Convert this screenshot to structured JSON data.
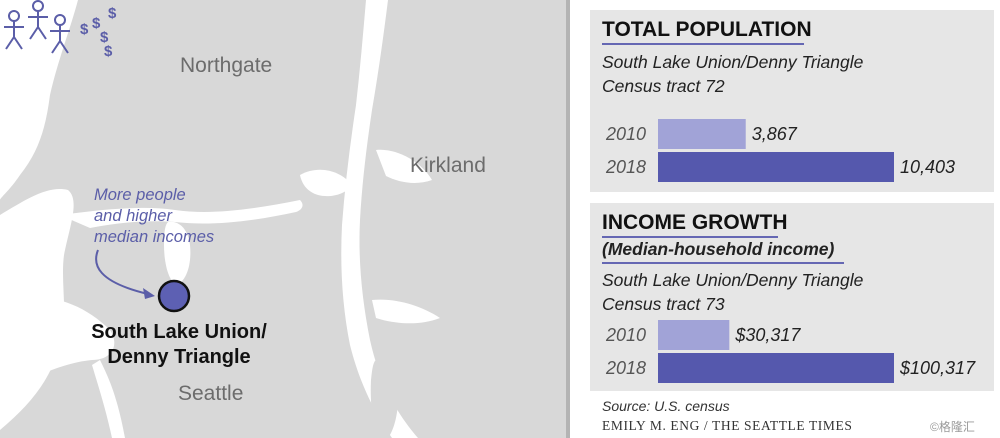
{
  "map": {
    "labels": {
      "northgate": "Northgate",
      "kirkland": "Kirkland",
      "seattle": "Seattle"
    },
    "note_line1": "More people",
    "note_line2": "and higher",
    "note_line3": "median incomes",
    "dollar_signs": "$",
    "marker_label_line1": "South Lake Union/",
    "marker_label_line2": "Denny Triangle"
  },
  "colors": {
    "bar_2010": "#a1a3d7",
    "bar_2018": "#5558ad",
    "accent": "#6567b3",
    "map_land": "#d8d8d8",
    "water": "#ffffff"
  },
  "chart_data": [
    {
      "type": "bar",
      "orientation": "horizontal",
      "title": "TOTAL POPULATION",
      "subtitle_line1": "South Lake Union/Denny Triangle",
      "subtitle_line2": "Census tract 72",
      "categories": [
        "2010",
        "2018"
      ],
      "values": [
        3867,
        10403
      ],
      "value_labels": [
        "3,867",
        "10,403"
      ]
    },
    {
      "type": "bar",
      "orientation": "horizontal",
      "title": "INCOME GROWTH",
      "subtitle": "(Median-household income)",
      "subtitle_line1": "South Lake Union/Denny Triangle",
      "subtitle_line2": "Census tract 73",
      "categories": [
        "2010",
        "2018"
      ],
      "values": [
        30317,
        100317
      ],
      "value_labels": [
        "$30,317",
        "$100,317"
      ]
    }
  ],
  "source": "Source: U.S. census",
  "credit": "EMILY M. ENG / THE SEATTLE TIMES",
  "watermark": "©格隆汇"
}
